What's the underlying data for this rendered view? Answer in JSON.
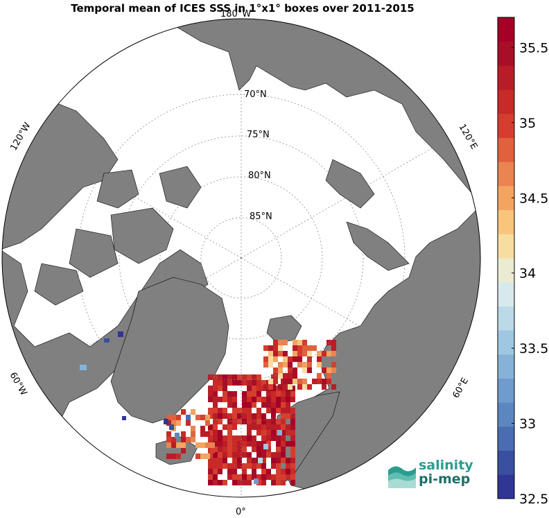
{
  "title": "Temporal mean of ICES SSS in 1°x1° boxes over 2011-2015",
  "map": {
    "projection": "north-polar-stereographic",
    "lat_labels": [
      "70°N",
      "75°N",
      "80°N",
      "85°N"
    ],
    "lon_labels": [
      "180°W",
      "120°W",
      "60°W",
      "0°",
      "60°E",
      "120°E"
    ],
    "land_color": "#808080",
    "ocean_color": "#ffffff"
  },
  "colorbar": {
    "min": 32.5,
    "max": 35.7,
    "ticks": [
      "32.5",
      "33",
      "33.5",
      "34",
      "34.5",
      "35",
      "35.5"
    ],
    "tick_values": [
      32.5,
      33,
      33.5,
      34,
      34.5,
      35,
      35.5
    ],
    "colors": [
      "#313695",
      "#3a4fa0",
      "#4a6cb0",
      "#5b86c0",
      "#6f9ccd",
      "#86b2d8",
      "#a0c7e1",
      "#bcd9e8",
      "#d8e9ec",
      "#ebebd2",
      "#f7dda0",
      "#f8c57c",
      "#f2a460",
      "#ea8450",
      "#e0613e",
      "#d53e2f",
      "#c72a27",
      "#b81d27",
      "#a70f27",
      "#a50026"
    ]
  },
  "logo": {
    "line1": "salinity",
    "line2": "pi-mep"
  }
}
